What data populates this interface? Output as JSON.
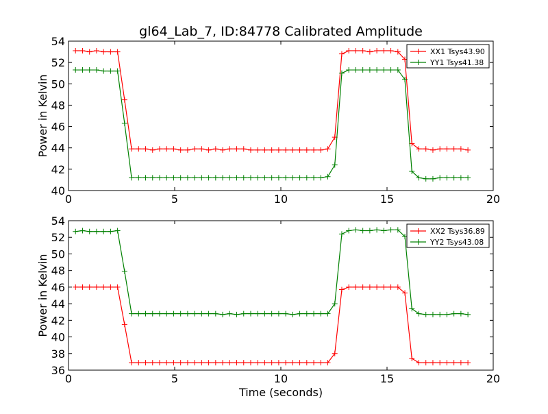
{
  "chart_data": [
    {
      "type": "line",
      "title": "gl64_Lab_7, ID:84778 Calibrated Amplitude",
      "xlabel": "",
      "ylabel": "Power in Kelvin",
      "xlim": [
        0,
        20
      ],
      "ylim": [
        40,
        54
      ],
      "xticks": [
        "0",
        "5",
        "10",
        "15",
        "20"
      ],
      "yticks": [
        "40",
        "42",
        "44",
        "46",
        "48",
        "50",
        "52",
        "54"
      ],
      "legend_position": "top-right",
      "x": [
        0.33,
        0.66,
        0.99,
        1.32,
        1.65,
        1.98,
        2.31,
        2.64,
        2.97,
        3.3,
        3.63,
        3.96,
        4.29,
        4.62,
        4.95,
        5.28,
        5.61,
        5.94,
        6.27,
        6.6,
        6.93,
        7.26,
        7.59,
        7.92,
        8.25,
        8.58,
        8.91,
        9.24,
        9.57,
        9.9,
        10.23,
        10.56,
        10.89,
        11.22,
        11.55,
        11.88,
        12.21,
        12.54,
        12.87,
        13.2,
        13.53,
        13.86,
        14.19,
        14.52,
        14.85,
        15.18,
        15.51,
        15.84,
        16.17,
        16.5,
        16.83,
        17.16,
        17.49,
        17.82,
        18.15,
        18.48,
        18.81
      ],
      "series": [
        {
          "name": "XX1 Tsys43.90",
          "color": "#ff0000",
          "values": [
            53.1,
            53.1,
            53.0,
            53.1,
            53.0,
            53.0,
            53.0,
            48.5,
            43.9,
            43.9,
            43.9,
            43.8,
            43.9,
            43.9,
            43.9,
            43.8,
            43.8,
            43.9,
            43.9,
            43.8,
            43.9,
            43.8,
            43.9,
            43.9,
            43.9,
            43.8,
            43.8,
            43.8,
            43.8,
            43.8,
            43.8,
            43.8,
            43.8,
            43.8,
            43.8,
            43.8,
            43.9,
            45.0,
            52.8,
            53.1,
            53.1,
            53.1,
            53.0,
            53.1,
            53.1,
            53.1,
            53.0,
            52.3,
            44.4,
            43.9,
            43.9,
            43.8,
            43.9,
            43.9,
            43.9,
            43.9,
            43.8
          ]
        },
        {
          "name": "YY1 Tsys41.38",
          "color": "#008000",
          "values": [
            51.3,
            51.3,
            51.3,
            51.3,
            51.2,
            51.2,
            51.2,
            46.3,
            41.2,
            41.2,
            41.2,
            41.2,
            41.2,
            41.2,
            41.2,
            41.2,
            41.2,
            41.2,
            41.2,
            41.2,
            41.2,
            41.2,
            41.2,
            41.2,
            41.2,
            41.2,
            41.2,
            41.2,
            41.2,
            41.2,
            41.2,
            41.2,
            41.2,
            41.2,
            41.2,
            41.2,
            41.3,
            42.4,
            51.0,
            51.3,
            51.3,
            51.3,
            51.3,
            51.3,
            51.3,
            51.3,
            51.3,
            50.4,
            41.8,
            41.2,
            41.1,
            41.1,
            41.2,
            41.2,
            41.2,
            41.2,
            41.2
          ]
        }
      ]
    },
    {
      "type": "line",
      "title": "",
      "xlabel": "Time (seconds)",
      "ylabel": "Power in Kelvin",
      "xlim": [
        0,
        20
      ],
      "ylim": [
        36,
        54
      ],
      "xticks": [
        "0",
        "5",
        "10",
        "15",
        "20"
      ],
      "yticks": [
        "36",
        "38",
        "40",
        "42",
        "44",
        "46",
        "48",
        "50",
        "52",
        "54"
      ],
      "legend_position": "top-right",
      "x": [
        0.33,
        0.66,
        0.99,
        1.32,
        1.65,
        1.98,
        2.31,
        2.64,
        2.97,
        3.3,
        3.63,
        3.96,
        4.29,
        4.62,
        4.95,
        5.28,
        5.61,
        5.94,
        6.27,
        6.6,
        6.93,
        7.26,
        7.59,
        7.92,
        8.25,
        8.58,
        8.91,
        9.24,
        9.57,
        9.9,
        10.23,
        10.56,
        10.89,
        11.22,
        11.55,
        11.88,
        12.21,
        12.54,
        12.87,
        13.2,
        13.53,
        13.86,
        14.19,
        14.52,
        14.85,
        15.18,
        15.51,
        15.84,
        16.17,
        16.5,
        16.83,
        17.16,
        17.49,
        17.82,
        18.15,
        18.48,
        18.81
      ],
      "series": [
        {
          "name": "XX2 Tsys36.89",
          "color": "#ff0000",
          "values": [
            46.0,
            46.0,
            46.0,
            46.0,
            46.0,
            46.0,
            46.0,
            41.5,
            36.9,
            36.9,
            36.9,
            36.9,
            36.9,
            36.9,
            36.9,
            36.9,
            36.9,
            36.9,
            36.9,
            36.9,
            36.9,
            36.9,
            36.9,
            36.9,
            36.9,
            36.9,
            36.9,
            36.9,
            36.9,
            36.9,
            36.9,
            36.9,
            36.9,
            36.9,
            36.9,
            36.9,
            36.9,
            38.0,
            45.7,
            46.0,
            46.0,
            46.0,
            46.0,
            46.0,
            46.0,
            46.0,
            46.0,
            45.3,
            37.4,
            36.9,
            36.9,
            36.9,
            36.9,
            36.9,
            36.9,
            36.9,
            36.9
          ]
        },
        {
          "name": "YY2 Tsys43.08",
          "color": "#008000",
          "values": [
            52.7,
            52.8,
            52.7,
            52.7,
            52.7,
            52.7,
            52.8,
            47.9,
            42.8,
            42.8,
            42.8,
            42.8,
            42.8,
            42.8,
            42.8,
            42.8,
            42.8,
            42.8,
            42.8,
            42.8,
            42.8,
            42.7,
            42.8,
            42.7,
            42.8,
            42.8,
            42.8,
            42.8,
            42.8,
            42.8,
            42.8,
            42.7,
            42.8,
            42.8,
            42.8,
            42.8,
            42.8,
            44.0,
            52.4,
            52.8,
            52.9,
            52.8,
            52.8,
            52.9,
            52.8,
            52.9,
            52.9,
            52.1,
            43.4,
            42.8,
            42.7,
            42.7,
            42.7,
            42.7,
            42.8,
            42.8,
            42.7
          ]
        }
      ]
    }
  ]
}
